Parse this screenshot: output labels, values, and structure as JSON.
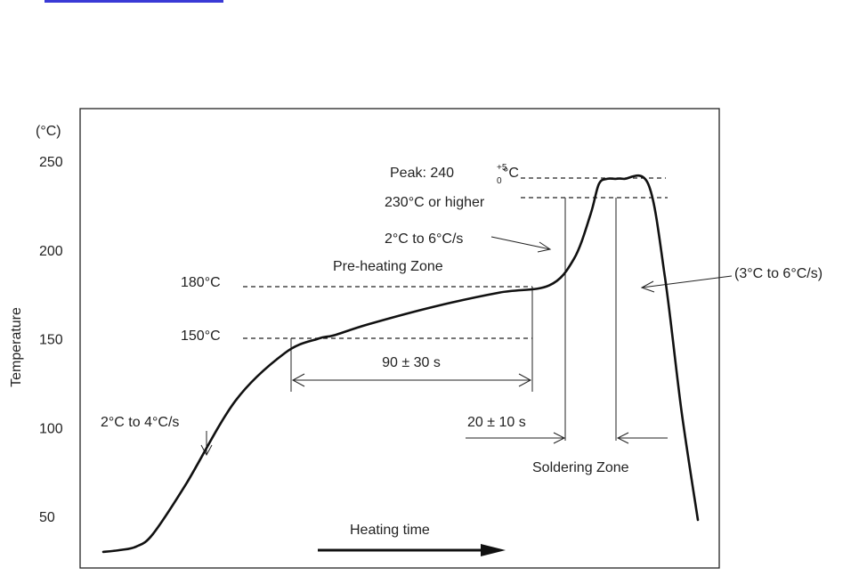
{
  "link_color": "#3a3ad6",
  "chart_data": {
    "type": "line",
    "unit_label": "(°C)",
    "ylabel": "Temperature",
    "y_ticks": [
      "250",
      "200",
      "150",
      "100",
      "50"
    ],
    "y_tick_values": [
      250,
      200,
      150,
      100,
      50
    ],
    "ylim": [
      22,
      273
    ],
    "x_units": "seconds (schematic, no axis scale)",
    "xlim": [
      0,
      360
    ],
    "grid": false,
    "series": [
      {
        "x": [
          0,
          10,
          20,
          30,
          50,
          80,
          110,
          130,
          140,
          160,
          200,
          240,
          270,
          285,
          295,
          300,
          305,
          310,
          315,
          330,
          340,
          350,
          360
        ],
        "y": [
          30,
          31,
          33,
          40,
          68,
          115,
          142,
          150,
          152,
          158,
          168,
          176,
          180,
          195,
          220,
          237,
          240,
          240,
          240,
          237,
          185,
          110,
          48
        ]
      }
    ],
    "annotations": {
      "peak": {
        "prefix": "Peak: 240",
        "sup": "+5",
        "sub": "0",
        "unit": "°C",
        "value": 240
      },
      "t230": {
        "text": "230°C or higher",
        "value": 230
      },
      "t180": {
        "text": "180°C",
        "value": 180
      },
      "t150": {
        "text": "150°C",
        "value": 150
      },
      "preheat_zone": "Pre-heating Zone",
      "preheat_time": "90 ± 30 s",
      "ramp_up_1": "2°C to 4°C/s",
      "ramp_up_2": "2°C to 6°C/s",
      "ramp_down": "(3°C to 6°C/s)",
      "solder_time": "20 ± 10 s",
      "solder_zone": "Soldering Zone",
      "heating_time": "Heating time"
    }
  }
}
